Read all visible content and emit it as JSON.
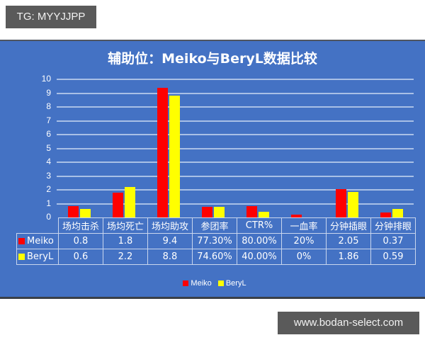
{
  "watermarks": {
    "top_left": "TG: MYYJJPP",
    "bottom_right": "www.bodan-select.com"
  },
  "colors": {
    "panel_bg": "#4472c4",
    "meiko": "#ff0000",
    "beryl": "#ffff00",
    "gridline": "#a9c0e6",
    "text": "#ffffff"
  },
  "chart_data": {
    "type": "bar",
    "title": "辅助位：Meiko与BeryL数据比较",
    "xlabel": "",
    "ylabel": "",
    "ylim": [
      0,
      10
    ],
    "yticks": [
      "0",
      "1",
      "2",
      "3",
      "4",
      "5",
      "6",
      "7",
      "8",
      "9",
      "10"
    ],
    "grid": true,
    "legend_position": "bottom",
    "categories": [
      "场均击杀",
      "场均死亡",
      "场均助攻",
      "参团率",
      "CTR%",
      "一血率",
      "分钟插眼",
      "分钟排眼"
    ],
    "series": [
      {
        "name": "Meiko",
        "color": "#ff0000",
        "values": [
          0.8,
          1.8,
          9.4,
          0.773,
          0.8,
          0.2,
          2.05,
          0.37
        ],
        "labels": [
          "0.8",
          "1.8",
          "9.4",
          "77.30%",
          "80.00%",
          "20%",
          "2.05",
          "0.37"
        ]
      },
      {
        "name": "BeryL",
        "color": "#ffff00",
        "values": [
          0.6,
          2.2,
          8.8,
          0.746,
          0.4,
          0.0,
          1.86,
          0.59
        ],
        "labels": [
          "0.6",
          "2.2",
          "8.8",
          "74.60%",
          "40.00%",
          "0%",
          "1.86",
          "0.59"
        ]
      }
    ],
    "data_table": true
  }
}
